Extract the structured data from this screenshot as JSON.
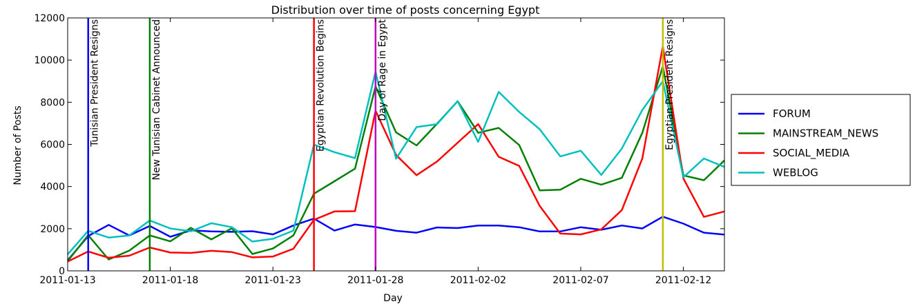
{
  "chart_data": {
    "type": "line",
    "title": "Distribution over time of posts concerning Egypt",
    "xlabel": "Day",
    "ylabel": "Number of Posts",
    "xlim": [
      "2011-01-13",
      "2011-02-14"
    ],
    "ylim": [
      0,
      12000
    ],
    "x_tick_labels": [
      "2011-01-13",
      "2011-01-18",
      "2011-01-23",
      "2011-01-28",
      "2011-02-02",
      "2011-02-07",
      "2011-02-12"
    ],
    "y_tick_labels": [
      "0",
      "2000",
      "4000",
      "6000",
      "8000",
      "10000",
      "12000"
    ],
    "grid": false,
    "legend_position": "right",
    "x": [
      "2011-01-13",
      "2011-01-14",
      "2011-01-15",
      "2011-01-16",
      "2011-01-17",
      "2011-01-18",
      "2011-01-19",
      "2011-01-20",
      "2011-01-21",
      "2011-01-22",
      "2011-01-23",
      "2011-01-24",
      "2011-01-25",
      "2011-01-26",
      "2011-01-27",
      "2011-01-28",
      "2011-01-29",
      "2011-01-30",
      "2011-01-31",
      "2011-02-01",
      "2011-02-02",
      "2011-02-03",
      "2011-02-04",
      "2011-02-05",
      "2011-02-06",
      "2011-02-07",
      "2011-02-08",
      "2011-02-09",
      "2011-02-10",
      "2011-02-11",
      "2011-02-12",
      "2011-02-13",
      "2011-02-14"
    ],
    "series": [
      {
        "name": "FORUM",
        "color": "#0000ff",
        "values": [
          500,
          1650,
          2180,
          1680,
          2130,
          1620,
          1920,
          1870,
          1850,
          1880,
          1730,
          2150,
          2480,
          1910,
          2200,
          2080,
          1900,
          1810,
          2060,
          2030,
          2150,
          2150,
          2070,
          1870,
          1870,
          2070,
          1950,
          2150,
          2010,
          2570,
          2240,
          1810,
          1720
        ]
      },
      {
        "name": "MAINSTREAM_NEWS",
        "color": "#008000",
        "values": [
          460,
          1690,
          540,
          960,
          1680,
          1400,
          2040,
          1490,
          2020,
          800,
          1060,
          1680,
          3660,
          4250,
          4850,
          8750,
          6570,
          5950,
          6980,
          8050,
          6550,
          6780,
          5970,
          3820,
          3850,
          4370,
          4090,
          4410,
          6550,
          9700,
          4530,
          4300,
          5240
        ]
      },
      {
        "name": "SOCIAL_MEDIA",
        "color": "#ff0000",
        "values": [
          440,
          920,
          620,
          720,
          1110,
          870,
          850,
          950,
          890,
          640,
          680,
          1050,
          2420,
          2820,
          2830,
          7600,
          5500,
          4540,
          5190,
          6080,
          6960,
          5410,
          4980,
          3080,
          1770,
          1730,
          1970,
          2880,
          5330,
          10650,
          4380,
          2560,
          2820
        ]
      },
      {
        "name": "WEBLOG",
        "color": "#00bfbf",
        "values": [
          780,
          1900,
          1580,
          1680,
          2390,
          2010,
          1880,
          2260,
          2070,
          1390,
          1520,
          1910,
          5990,
          5630,
          5350,
          9450,
          5320,
          6820,
          6960,
          8050,
          6120,
          8490,
          7540,
          6720,
          5430,
          5700,
          4550,
          5800,
          7630,
          9000,
          4440,
          5330,
          4930
        ]
      }
    ],
    "events": [
      {
        "label": "Tunisian President Resigns",
        "date": "2011-01-14",
        "color": "#0000ff"
      },
      {
        "label": "New Tunisian Cabinet Announced",
        "date": "2011-01-17",
        "color": "#008000"
      },
      {
        "label": "Egyptian Revolution Begins",
        "date": "2011-01-25",
        "color": "#ff0000"
      },
      {
        "label": "Day of Rage in Egypt",
        "date": "2011-01-28",
        "color": "#bf00bf"
      },
      {
        "label": "Egyptian President Resigns",
        "date": "2011-02-11",
        "color": "#bfbf00"
      }
    ]
  }
}
